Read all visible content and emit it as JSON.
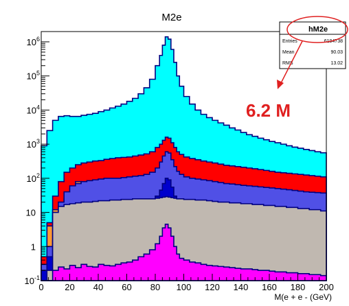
{
  "chart_data": {
    "type": "area",
    "title": "M2e",
    "xlabel": "M(e + e - (GeV)",
    "ylabel": "",
    "xlim": [
      0,
      200
    ],
    "ylim": [
      0.1,
      2000000
    ],
    "log_y": true,
    "x_ticks": [
      "0",
      "20",
      "40",
      "60",
      "80",
      "100",
      "120",
      "140",
      "160",
      "180",
      "200"
    ],
    "y_ticks": [
      {
        "value": 0.1,
        "base": "10",
        "exp": "-1"
      },
      {
        "value": 1,
        "base": "1",
        "exp": ""
      },
      {
        "value": 10,
        "base": "10",
        "exp": ""
      },
      {
        "value": 100,
        "base": "10",
        "exp": "2"
      },
      {
        "value": 1000,
        "base": "10",
        "exp": "3"
      },
      {
        "value": 10000,
        "base": "10",
        "exp": "4"
      },
      {
        "value": 100000,
        "base": "10",
        "exp": "5"
      },
      {
        "value": 1000000,
        "base": "10",
        "exp": "6"
      }
    ],
    "x": [
      2,
      6,
      10,
      14,
      18,
      22,
      26,
      30,
      34,
      38,
      42,
      46,
      50,
      54,
      58,
      62,
      66,
      70,
      74,
      78,
      82,
      84,
      86,
      88,
      90,
      92,
      94,
      96,
      98,
      102,
      106,
      110,
      114,
      118,
      122,
      126,
      130,
      134,
      138,
      142,
      146,
      150,
      154,
      158,
      162,
      166,
      170,
      174,
      178,
      182,
      186,
      190,
      194,
      198
    ],
    "series": [
      {
        "color": "#00ffff",
        "values": [
          900,
          2500,
          5000,
          6500,
          6800,
          6500,
          6500,
          7000,
          7500,
          8000,
          9000,
          10000,
          11500,
          13000,
          15000,
          18000,
          22000,
          30000,
          45000,
          80000,
          200000,
          400000,
          800000,
          1400000,
          1200000,
          600000,
          250000,
          100000,
          50000,
          25000,
          15000,
          10000,
          7500,
          6000,
          5000,
          4200,
          3600,
          3000,
          2600,
          2200,
          1900,
          1700,
          1500,
          1350,
          1200,
          1100,
          1000,
          900,
          820,
          760,
          700,
          650,
          600,
          560
        ]
      },
      {
        "color": "#ff0000",
        "values": [
          0.5,
          5,
          30,
          80,
          150,
          200,
          250,
          280,
          300,
          320,
          330,
          360,
          380,
          400,
          410,
          420,
          450,
          480,
          520,
          600,
          800,
          1000,
          1300,
          1600,
          1500,
          1100,
          800,
          600,
          500,
          420,
          380,
          350,
          320,
          300,
          280,
          260,
          240,
          230,
          220,
          210,
          200,
          190,
          180,
          170,
          160,
          150,
          145,
          140,
          135,
          130,
          125,
          120,
          115,
          110
        ]
      },
      {
        "color": "#ff9933",
        "values": [
          0.2,
          4,
          12,
          15,
          25,
          50,
          80,
          60,
          40,
          30,
          25,
          22,
          20,
          0.2,
          0.2,
          0.2,
          0.2,
          0.2,
          0.2,
          0.2,
          0.2,
          0.2,
          0.2,
          0.2,
          0.2,
          0.2,
          0.2,
          0.2,
          0.2,
          0.2,
          0.2,
          0.2,
          0.2,
          0.2,
          0.2,
          0.2,
          0.2,
          0.2,
          0.2,
          0.2,
          0.2,
          0.2,
          0.2,
          0.2,
          0.2,
          0.2,
          0.2,
          0.2,
          0.2,
          0.2,
          0.2,
          0.2,
          0.2,
          0.2
        ]
      },
      {
        "color": "#5050e6",
        "values": [
          0.3,
          1,
          8,
          20,
          40,
          60,
          70,
          80,
          85,
          90,
          95,
          100,
          100,
          100,
          105,
          110,
          115,
          120,
          130,
          150,
          200,
          300,
          450,
          600,
          550,
          350,
          220,
          160,
          130,
          110,
          100,
          95,
          90,
          85,
          80,
          75,
          70,
          68,
          65,
          62,
          60,
          58,
          56,
          54,
          52,
          50,
          48,
          46,
          44,
          42,
          40,
          39,
          38,
          37
        ]
      },
      {
        "color": "#0000cc",
        "values": [
          0.2,
          0.5,
          1.5,
          3,
          5,
          6,
          7,
          8,
          9,
          10,
          11,
          12,
          13,
          13,
          14,
          14,
          15,
          16,
          18,
          22,
          30,
          45,
          70,
          100,
          90,
          55,
          30,
          22,
          18,
          15,
          14,
          13,
          12,
          11,
          10.5,
          10,
          9.5,
          9,
          8.8,
          8.5,
          8.2,
          8,
          7.8,
          7.5,
          7.2,
          7,
          6.8,
          6.5,
          6.2,
          6,
          5.8,
          5.6,
          5.4,
          5.2
        ]
      },
      {
        "color": "#c0b8b0",
        "values": [
          0.1,
          0.2,
          10,
          15,
          17,
          18,
          19,
          20,
          20,
          21,
          22,
          22,
          23,
          23,
          24,
          24,
          25,
          25,
          25,
          25,
          26,
          27,
          28,
          29,
          28,
          27,
          26,
          25,
          25,
          24,
          24,
          23,
          23,
          22,
          21,
          20,
          20,
          19,
          19,
          18,
          18,
          17,
          17,
          16,
          16,
          15,
          15,
          14,
          14,
          13,
          13,
          12,
          12,
          11
        ]
      },
      {
        "color": "#ff00ff",
        "values": [
          0.1,
          0.1,
          0.2,
          0.25,
          0.22,
          0.28,
          0.24,
          0.3,
          0.26,
          0.25,
          0.3,
          0.28,
          0.27,
          0.3,
          0.33,
          0.35,
          0.4,
          0.5,
          0.6,
          0.8,
          1.2,
          2,
          3.5,
          4.5,
          3.5,
          2,
          1,
          0.6,
          0.45,
          0.4,
          0.35,
          0.33,
          0.3,
          0.28,
          0.27,
          0.26,
          0.25,
          0.24,
          0.23,
          0.22,
          0.22,
          0.21,
          0.2,
          0.2,
          0.19,
          0.18,
          0.18,
          0.17,
          0.17,
          0.16,
          0.16,
          0.15,
          0.15,
          0.14
        ]
      }
    ],
    "stats_box": {
      "name": "hM2e",
      "rows": [
        {
          "label": "Entries",
          "value": "6194738"
        },
        {
          "label": "Mean",
          "value": "90.03"
        },
        {
          "label": "RMS",
          "value": "13.02"
        }
      ]
    },
    "annotation": {
      "text": "6.2 M",
      "color": "#e02020"
    }
  }
}
